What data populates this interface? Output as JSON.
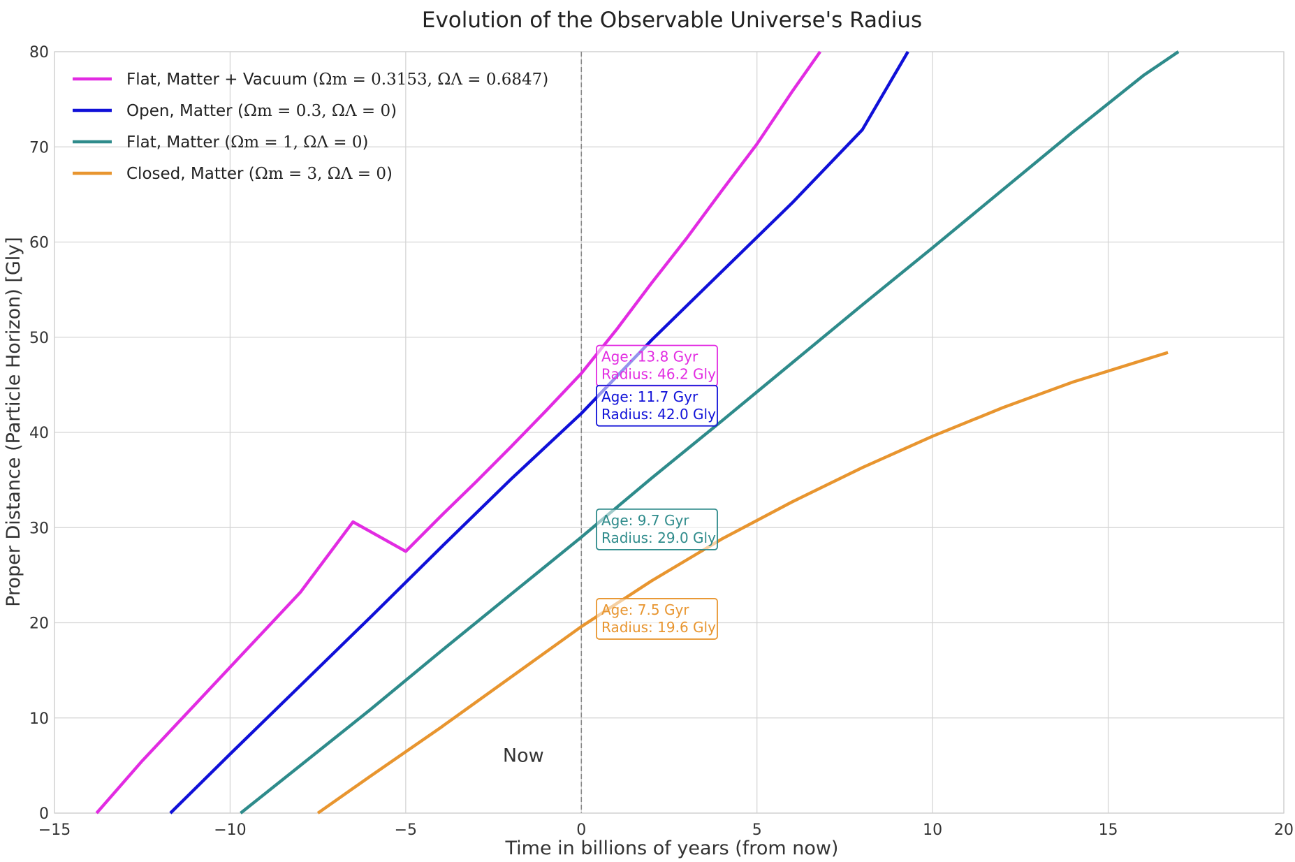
{
  "chart_data": {
    "type": "line",
    "title": "Evolution of the Observable Universe's Radius",
    "xlabel": "Time in billions of years (from now)",
    "ylabel": "Proper Distance (Particle Horizon) [Gly]",
    "xlim": [
      -15,
      20
    ],
    "ylim": [
      0,
      80
    ],
    "xticks": [
      -15,
      -10,
      -5,
      0,
      5,
      10,
      15,
      20
    ],
    "xtick_labels": [
      "−15",
      "−10",
      "−5",
      "0",
      "5",
      "10",
      "15",
      "20"
    ],
    "yticks": [
      0,
      10,
      20,
      30,
      40,
      50,
      60,
      70,
      80
    ],
    "ytick_labels": [
      "0",
      "10",
      "20",
      "30",
      "40",
      "50",
      "60",
      "70",
      "80"
    ],
    "grid": true,
    "legend_location": "top-left",
    "now_marker": {
      "x": 0,
      "label": "Now"
    },
    "series": [
      {
        "name": "Flat, Matter + Vacuum (Ωm = 0.3153, ΩΛ = 0.6847)",
        "legend_prefix": "Flat, Matter + Vacuum (",
        "legend_math": "Ωm = 0.3153, ΩΛ = 0.6847",
        "legend_suffix": ")",
        "color": "#e22be2",
        "x": [
          -13.8,
          -12.5,
          -11,
          -9.5,
          -8,
          -6.5,
          -5,
          -4,
          -3,
          -2,
          -1,
          0,
          1,
          2,
          3,
          4,
          5,
          6,
          6.8
        ],
        "y": [
          0,
          5.5,
          11.4,
          17.3,
          23.2,
          30.6,
          27.5,
          31.2,
          34.8,
          38.5,
          42.3,
          46.2,
          50.8,
          55.7,
          60.4,
          65.4,
          70.3,
          75.8,
          80
        ],
        "annotation": {
          "age_text": "Age: 13.8 Gyr",
          "radius_text": "Radius: 46.2 Gly",
          "value": 46.2
        }
      },
      {
        "name": "Open, Matter (Ωm = 0.3, ΩΛ = 0)",
        "legend_prefix": "Open, Matter (",
        "legend_math": "Ωm = 0.3, ΩΛ = 0",
        "legend_suffix": ")",
        "color": "#1010d8",
        "x": [
          -11.7,
          -10,
          -8,
          -6,
          -4,
          -2,
          0,
          2,
          4,
          6,
          8,
          9.3
        ],
        "y": [
          0,
          6.2,
          13.4,
          20.6,
          27.9,
          35.1,
          42.0,
          49.7,
          56.9,
          64.1,
          71.8,
          80
        ],
        "annotation": {
          "age_text": "Age: 11.7 Gyr",
          "radius_text": "Radius: 42.0 Gly",
          "value": 42.0
        }
      },
      {
        "name": "Flat, Matter (Ωm = 1, ΩΛ = 0)",
        "legend_prefix": "Flat, Matter (",
        "legend_math": "Ωm = 1, ΩΛ = 0",
        "legend_suffix": ")",
        "color": "#2e8b8b",
        "x": [
          -9.7,
          -8,
          -6,
          -4,
          -2,
          0,
          2,
          4,
          6,
          8,
          10,
          12,
          14,
          16,
          17
        ],
        "y": [
          0,
          5.0,
          10.9,
          17.0,
          23.0,
          29.0,
          35.2,
          41.2,
          47.3,
          53.4,
          59.4,
          65.5,
          71.6,
          77.5,
          80
        ],
        "annotation": {
          "age_text": "Age: 9.7 Gyr",
          "radius_text": "Radius: 29.0 Gly",
          "value": 29.0
        }
      },
      {
        "name": "Closed, Matter (Ωm = 3, ΩΛ = 0)",
        "legend_prefix": "Closed, Matter (",
        "legend_math": "Ωm = 3, ΩΛ = 0",
        "legend_suffix": ")",
        "color": "#e8952f",
        "x": [
          -7.5,
          -6,
          -4,
          -2,
          0,
          2,
          4,
          6,
          8,
          10,
          12,
          14,
          16,
          16.7
        ],
        "y": [
          0,
          3.9,
          9.0,
          14.3,
          19.6,
          24.4,
          28.8,
          32.7,
          36.3,
          39.6,
          42.6,
          45.3,
          47.6,
          48.4
        ],
        "annotation": {
          "age_text": "Age: 7.5 Gyr",
          "radius_text": "Radius: 19.6 Gly",
          "value": 19.6
        }
      }
    ]
  }
}
